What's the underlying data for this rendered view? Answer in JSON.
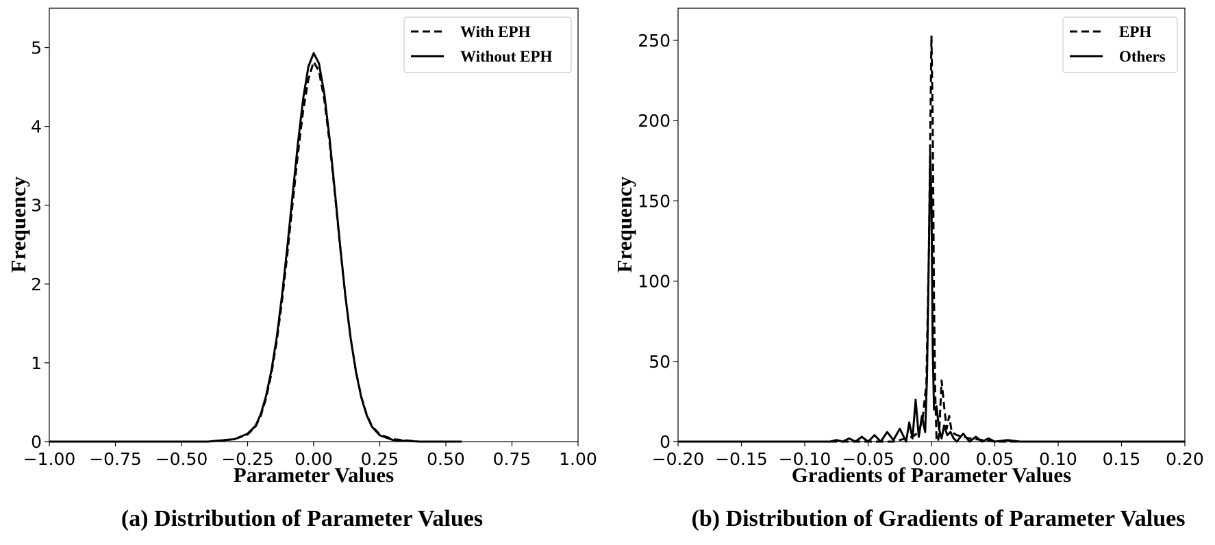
{
  "chart_data": [
    {
      "type": "line",
      "caption": "(a) Distribution of Parameter Values",
      "xlabel": "Parameter Values",
      "ylabel": "Frequency",
      "xlim": [
        -1.0,
        1.0
      ],
      "ylim": [
        0,
        5.5
      ],
      "xticks": [
        -1.0,
        -0.75,
        -0.5,
        -0.25,
        0.0,
        0.25,
        0.5,
        0.75,
        1.0
      ],
      "xtick_labels": [
        "−1.00",
        "−0.75",
        "−0.50",
        "−0.25",
        "0.00",
        "0.25",
        "0.50",
        "0.75",
        "1.00"
      ],
      "yticks": [
        0,
        1,
        2,
        3,
        4,
        5
      ],
      "ytick_labels": [
        "0",
        "1",
        "2",
        "3",
        "4",
        "5"
      ],
      "grid": false,
      "legend_position": "top-right",
      "series": [
        {
          "name": "With EPH",
          "style": "dashed",
          "x": [
            -1.0,
            -0.6,
            -0.4,
            -0.3,
            -0.25,
            -0.22,
            -0.2,
            -0.18,
            -0.16,
            -0.14,
            -0.12,
            -0.1,
            -0.08,
            -0.06,
            -0.04,
            -0.02,
            0.0,
            0.02,
            0.04,
            0.06,
            0.08,
            0.1,
            0.12,
            0.14,
            0.16,
            0.18,
            0.2,
            0.22,
            0.25,
            0.3,
            0.4,
            0.56
          ],
          "y": [
            0,
            0,
            0,
            0.03,
            0.09,
            0.19,
            0.33,
            0.55,
            0.86,
            1.27,
            1.78,
            2.37,
            3.01,
            3.64,
            4.2,
            4.6,
            4.82,
            4.7,
            4.35,
            3.8,
            3.15,
            2.47,
            1.84,
            1.31,
            0.89,
            0.57,
            0.35,
            0.2,
            0.09,
            0.03,
            0,
            0
          ]
        },
        {
          "name": "Without EPH",
          "style": "solid",
          "x": [
            -1.0,
            -0.6,
            -0.4,
            -0.3,
            -0.25,
            -0.22,
            -0.2,
            -0.18,
            -0.16,
            -0.14,
            -0.12,
            -0.1,
            -0.08,
            -0.06,
            -0.04,
            -0.02,
            0.0,
            0.02,
            0.04,
            0.06,
            0.08,
            0.1,
            0.12,
            0.14,
            0.16,
            0.18,
            0.2,
            0.22,
            0.25,
            0.3,
            0.4,
            0.56
          ],
          "y": [
            0,
            0,
            0,
            0.03,
            0.1,
            0.2,
            0.35,
            0.58,
            0.9,
            1.32,
            1.85,
            2.46,
            3.12,
            3.77,
            4.35,
            4.76,
            4.93,
            4.8,
            4.42,
            3.85,
            3.18,
            2.49,
            1.85,
            1.31,
            0.88,
            0.56,
            0.34,
            0.19,
            0.08,
            0.02,
            0,
            0
          ]
        }
      ]
    },
    {
      "type": "line",
      "caption": "(b) Distribution of Gradients of Parameter Values",
      "xlabel": "Gradients of Parameter Values",
      "ylabel": "Frequency",
      "xlim": [
        -0.2,
        0.2
      ],
      "ylim": [
        0,
        270
      ],
      "xticks": [
        -0.2,
        -0.15,
        -0.1,
        -0.05,
        0.0,
        0.05,
        0.1,
        0.15,
        0.2
      ],
      "xtick_labels": [
        "−0.20",
        "−0.15",
        "−0.10",
        "−0.05",
        "0.00",
        "0.05",
        "0.10",
        "0.15",
        "0.20"
      ],
      "yticks": [
        0,
        50,
        100,
        150,
        200,
        250
      ],
      "ytick_labels": [
        "0",
        "50",
        "100",
        "150",
        "200",
        "250"
      ],
      "grid": false,
      "legend_position": "top-right",
      "series": [
        {
          "name": "EPH",
          "style": "dashed",
          "x": [
            -0.2,
            -0.1,
            -0.05,
            -0.03,
            -0.02,
            -0.015,
            -0.01,
            -0.007,
            -0.004,
            -0.002,
            0.0,
            0.001,
            0.002,
            0.003,
            0.004,
            0.005,
            0.006,
            0.008,
            0.01,
            0.012,
            0.014,
            0.016,
            0.02,
            0.03,
            0.05,
            0.2
          ],
          "y": [
            0,
            0,
            0,
            0,
            2,
            3,
            6,
            14,
            36,
            120,
            253,
            200,
            90,
            30,
            2,
            0,
            4,
            38,
            22,
            8,
            16,
            6,
            4,
            2,
            0,
            0
          ]
        },
        {
          "name": "Others",
          "style": "solid",
          "x": [
            -0.2,
            -0.08,
            -0.075,
            -0.07,
            -0.065,
            -0.06,
            -0.055,
            -0.05,
            -0.045,
            -0.04,
            -0.035,
            -0.03,
            -0.025,
            -0.02,
            -0.0175,
            -0.015,
            -0.0125,
            -0.01,
            -0.0075,
            -0.005,
            -0.0035,
            -0.002,
            -0.001,
            0.0,
            0.001,
            0.002,
            0.004,
            0.006,
            0.008,
            0.01,
            0.0125,
            0.015,
            0.0175,
            0.02,
            0.025,
            0.03,
            0.035,
            0.04,
            0.045,
            0.05,
            0.06,
            0.07,
            0.2
          ],
          "y": [
            0,
            0,
            1,
            0,
            2,
            0,
            3,
            0,
            4,
            0,
            6,
            1,
            8,
            0,
            12,
            2,
            26,
            3,
            16,
            6,
            40,
            120,
            180,
            150,
            60,
            20,
            22,
            8,
            2,
            10,
            4,
            6,
            2,
            0,
            5,
            0,
            3,
            0,
            2,
            0,
            1,
            0,
            0
          ]
        }
      ]
    }
  ]
}
